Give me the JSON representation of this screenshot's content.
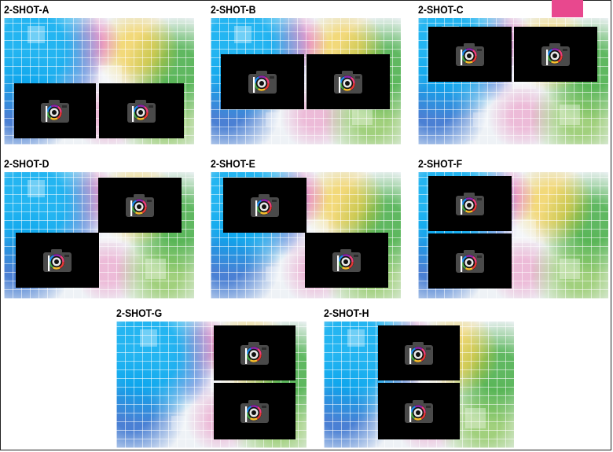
{
  "layouts": [
    {
      "id": "a",
      "label": "2-SHOT-A"
    },
    {
      "id": "b",
      "label": "2-SHOT-B"
    },
    {
      "id": "c",
      "label": "2-SHOT-C"
    },
    {
      "id": "d",
      "label": "2-SHOT-D"
    },
    {
      "id": "e",
      "label": "2-SHOT-E"
    },
    {
      "id": "f",
      "label": "2-SHOT-F"
    },
    {
      "id": "g",
      "label": "2-SHOT-G"
    },
    {
      "id": "h",
      "label": "2-SHOT-H"
    }
  ],
  "icons": {
    "tile_icon": "camera-icon"
  },
  "colors": {
    "accent": "#e8488e",
    "tile": "#000000"
  }
}
